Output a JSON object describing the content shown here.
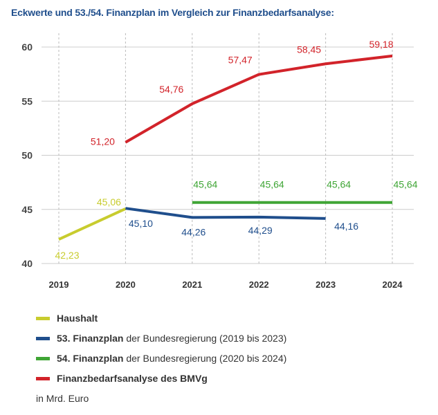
{
  "title": "Eckwerte und 53./54. Finanzplan im Vergleich zur Finanzbedarfsanalyse:",
  "unit": "in Mrd. Euro",
  "legend": [
    {
      "bold": "Haushalt",
      "rest": "",
      "color": "#c8cc2e"
    },
    {
      "bold": "53. Finanzplan",
      "rest": " der Bundesregierung (2019 bis 2023)",
      "color": "#1f4e8c"
    },
    {
      "bold": "54. Finanzplan",
      "rest": " der Bundesregierung (2020 bis 2024)",
      "color": "#3fa535"
    },
    {
      "bold": "Finanzbedarfsanalyse des BMVg",
      "rest": "",
      "color": "#d2232a"
    }
  ],
  "chart_data": {
    "type": "line",
    "title": "Eckwerte und 53./54. Finanzplan im Vergleich zur Finanzbedarfsanalyse:",
    "x": [
      2019,
      2020,
      2021,
      2022,
      2023,
      2024
    ],
    "ylim": [
      40,
      60
    ],
    "yticks": [
      40,
      45,
      50,
      55,
      60
    ],
    "grid": true,
    "legend_position": "bottom",
    "series": [
      {
        "name": "Haushalt",
        "color": "#c8cc2e",
        "points": [
          [
            2019,
            42.23
          ],
          [
            2020,
            45.06
          ]
        ],
        "labels": [
          "42,23",
          "45,06"
        ]
      },
      {
        "name": "53. Finanzplan der Bundesregierung (2019 bis 2023)",
        "color": "#1f4e8c",
        "points": [
          [
            2020,
            45.1
          ],
          [
            2021,
            44.26
          ],
          [
            2022,
            44.29
          ],
          [
            2023,
            44.16
          ]
        ],
        "labels": [
          "45,10",
          "44,26",
          "44,29",
          "44,16"
        ]
      },
      {
        "name": "54. Finanzplan der Bundesregierung (2020 bis 2024)",
        "color": "#3fa535",
        "points": [
          [
            2021,
            45.64
          ],
          [
            2022,
            45.64
          ],
          [
            2023,
            45.64
          ],
          [
            2024,
            45.64
          ]
        ],
        "labels": [
          "45,64",
          "45,64",
          "45,64",
          "45,64"
        ]
      },
      {
        "name": "Finanzbedarfsanalyse des BMVg",
        "color": "#d2232a",
        "points": [
          [
            2020,
            51.2
          ],
          [
            2021,
            54.76
          ],
          [
            2022,
            57.47
          ],
          [
            2023,
            58.45
          ],
          [
            2024,
            59.18
          ]
        ],
        "labels": [
          "51,20",
          "54,76",
          "57,47",
          "58,45",
          "59,18"
        ]
      }
    ]
  }
}
